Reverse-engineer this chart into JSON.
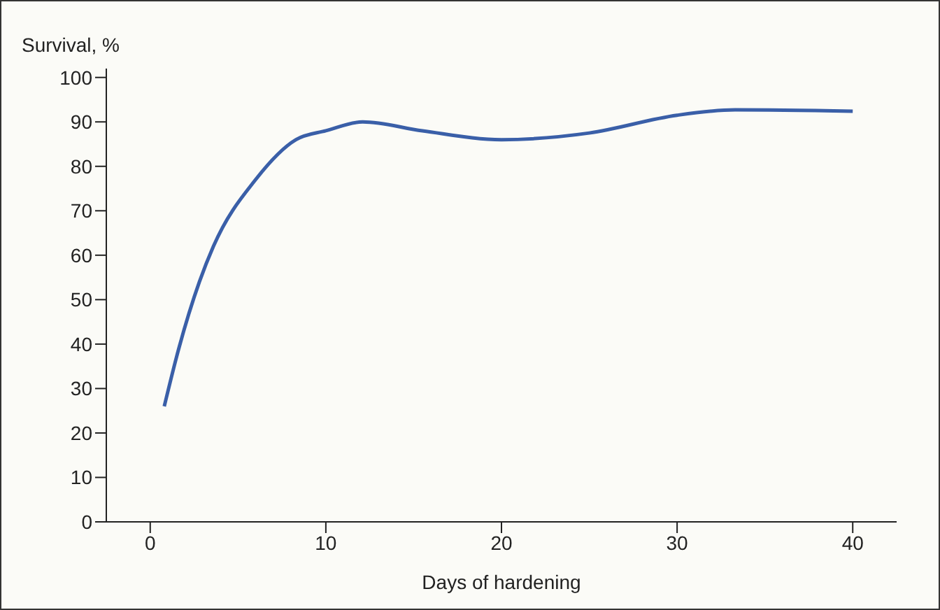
{
  "chart_data": {
    "type": "line",
    "xlabel": "Days of hardening",
    "ylabel": "Survival, %",
    "x": [
      0.8,
      1.6,
      2.8,
      3.6,
      6,
      8.3,
      10,
      12.1,
      15.5,
      20,
      25,
      30,
      33.3,
      40
    ],
    "series": [
      {
        "color": "#3a5fa8",
        "values": [
          26,
          38.6,
          54,
          62,
          77,
          86,
          88,
          90,
          88,
          86,
          87.5,
          91.5,
          92.7,
          92.4
        ]
      }
    ],
    "xlim": [
      -2.5,
      42.5
    ],
    "xticks": [
      0,
      10,
      20,
      30,
      40
    ],
    "ylim": [
      0,
      102
    ],
    "yticks": [
      0,
      10,
      20,
      30,
      40,
      50,
      60,
      70,
      80,
      90,
      100
    ],
    "grid": false,
    "legend": false,
    "marker": "none",
    "line_style": "solid"
  }
}
